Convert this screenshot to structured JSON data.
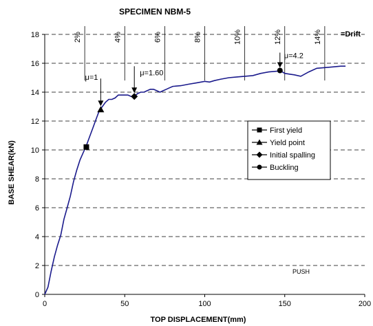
{
  "chart_data": {
    "type": "line",
    "title": "SPECIMEN NBM-5",
    "xlabel": "TOP DISPLACEMENT(mm)",
    "ylabel": "BASE SHEAR(kN)",
    "xlim": [
      0,
      200
    ],
    "ylim": [
      0,
      18
    ],
    "x_ticks": [
      "0",
      "50",
      "100",
      "150",
      "200"
    ],
    "y_ticks": [
      "0",
      "2",
      "4",
      "6",
      "8",
      "10",
      "12",
      "14",
      "16",
      "18"
    ],
    "grid": "horizontal-dashed",
    "line_color": "#1a1a8c",
    "series": [
      {
        "x": [
          0,
          2,
          4,
          6,
          8,
          10,
          12,
          14,
          16,
          18,
          20,
          22,
          24,
          26,
          28,
          30,
          32,
          34,
          36,
          38,
          40,
          42,
          44,
          46,
          48,
          50,
          52,
          54,
          56,
          58,
          60,
          62,
          64,
          66,
          68,
          70,
          72,
          74,
          76,
          78,
          80,
          85,
          90,
          95,
          100,
          103,
          106,
          110,
          115,
          120,
          125,
          130,
          135,
          140,
          145,
          147,
          150,
          153,
          156,
          160,
          165,
          170,
          175,
          180,
          185,
          188
        ],
        "y": [
          0,
          0.5,
          1.6,
          2.6,
          3.4,
          4.1,
          5.2,
          6.0,
          6.8,
          7.8,
          8.6,
          9.3,
          9.8,
          10.3,
          10.9,
          11.5,
          12.1,
          12.7,
          13.0,
          13.3,
          13.5,
          13.5,
          13.6,
          13.8,
          13.8,
          13.8,
          13.8,
          13.7,
          13.7,
          13.9,
          14.0,
          14.0,
          14.1,
          14.2,
          14.2,
          14.1,
          14.0,
          14.1,
          14.2,
          14.3,
          14.4,
          14.45,
          14.55,
          14.65,
          14.75,
          14.7,
          14.8,
          14.9,
          15.0,
          15.05,
          15.1,
          15.15,
          15.3,
          15.4,
          15.45,
          15.5,
          15.3,
          15.25,
          15.2,
          15.1,
          15.4,
          15.65,
          15.7,
          15.75,
          15.8,
          15.8
        ]
      }
    ],
    "markers": [
      {
        "label": "First yield",
        "shape": "square",
        "x": 26,
        "y": 10.2
      },
      {
        "label": "Yield point",
        "shape": "triangle",
        "x": 35,
        "y": 12.8
      },
      {
        "label": "Initial spalling",
        "shape": "diamond",
        "x": 56,
        "y": 13.7
      },
      {
        "label": "Buckling",
        "shape": "circle",
        "x": 147,
        "y": 15.5
      }
    ],
    "drift_markers": [
      {
        "label": "2%",
        "x": 25
      },
      {
        "label": "4%",
        "x": 50
      },
      {
        "label": "6%",
        "x": 75
      },
      {
        "label": "8%",
        "x": 100
      },
      {
        "label": "10%",
        "x": 125
      },
      {
        "label": "12%",
        "x": 150
      },
      {
        "label": "14%",
        "x": 175
      }
    ],
    "drift_legend": "=Drift",
    "annotations": [
      {
        "text": "μ=1",
        "x": 35,
        "y": 12.8
      },
      {
        "text": "μ=1.60",
        "x": 56,
        "y": 13.7
      },
      {
        "text": "μ=4.2",
        "x": 147,
        "y": 15.5
      }
    ],
    "note": "PUSH",
    "legend_placement": "right-middle"
  }
}
